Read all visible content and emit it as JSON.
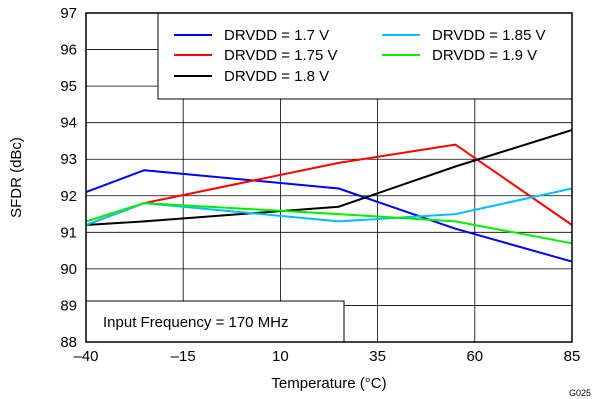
{
  "chart_data": {
    "type": "line",
    "xlabel": "Temperature (°C)",
    "ylabel": "SFDR (dBc)",
    "xlim": [
      -40,
      85
    ],
    "ylim": [
      88,
      97
    ],
    "x_ticks": [
      -40,
      -15,
      10,
      35,
      60,
      85
    ],
    "x_tick_labels": [
      "–40",
      "–15",
      "10",
      "35",
      "60",
      "85"
    ],
    "y_ticks": [
      88,
      89,
      90,
      91,
      92,
      93,
      94,
      95,
      96,
      97
    ],
    "y_tick_labels": [
      "88",
      "89",
      "90",
      "91",
      "92",
      "93",
      "94",
      "95",
      "96",
      "97"
    ],
    "grid": true,
    "legend_position": "top-right",
    "annotation": "Input Frequency = 170 MHz",
    "figure_id": "G025",
    "series": [
      {
        "name": "DRVDD = 1.7 V",
        "color": "#0000ff",
        "x": [
          -40,
          -25,
          25,
          55,
          85
        ],
        "y": [
          92.1,
          92.7,
          92.2,
          91.1,
          90.2
        ]
      },
      {
        "name": "DRVDD = 1.75 V",
        "color": "#ff0000",
        "x": [
          -40,
          -25,
          25,
          55,
          85
        ],
        "y": [
          91.2,
          91.8,
          92.9,
          93.4,
          91.2
        ]
      },
      {
        "name": "DRVDD = 1.8 V",
        "color": "#000000",
        "x": [
          -40,
          -25,
          25,
          55,
          85
        ],
        "y": [
          91.2,
          91.3,
          91.7,
          92.8,
          93.8
        ]
      },
      {
        "name": "DRVDD = 1.85 V",
        "color": "#00bfff",
        "x": [
          -40,
          -25,
          25,
          55,
          85
        ],
        "y": [
          91.2,
          91.8,
          91.3,
          91.5,
          92.2
        ]
      },
      {
        "name": "DRVDD = 1.9 V",
        "color": "#00ee00",
        "x": [
          -40,
          -25,
          25,
          55,
          85
        ],
        "y": [
          91.3,
          91.8,
          91.5,
          91.3,
          90.7
        ]
      }
    ]
  }
}
